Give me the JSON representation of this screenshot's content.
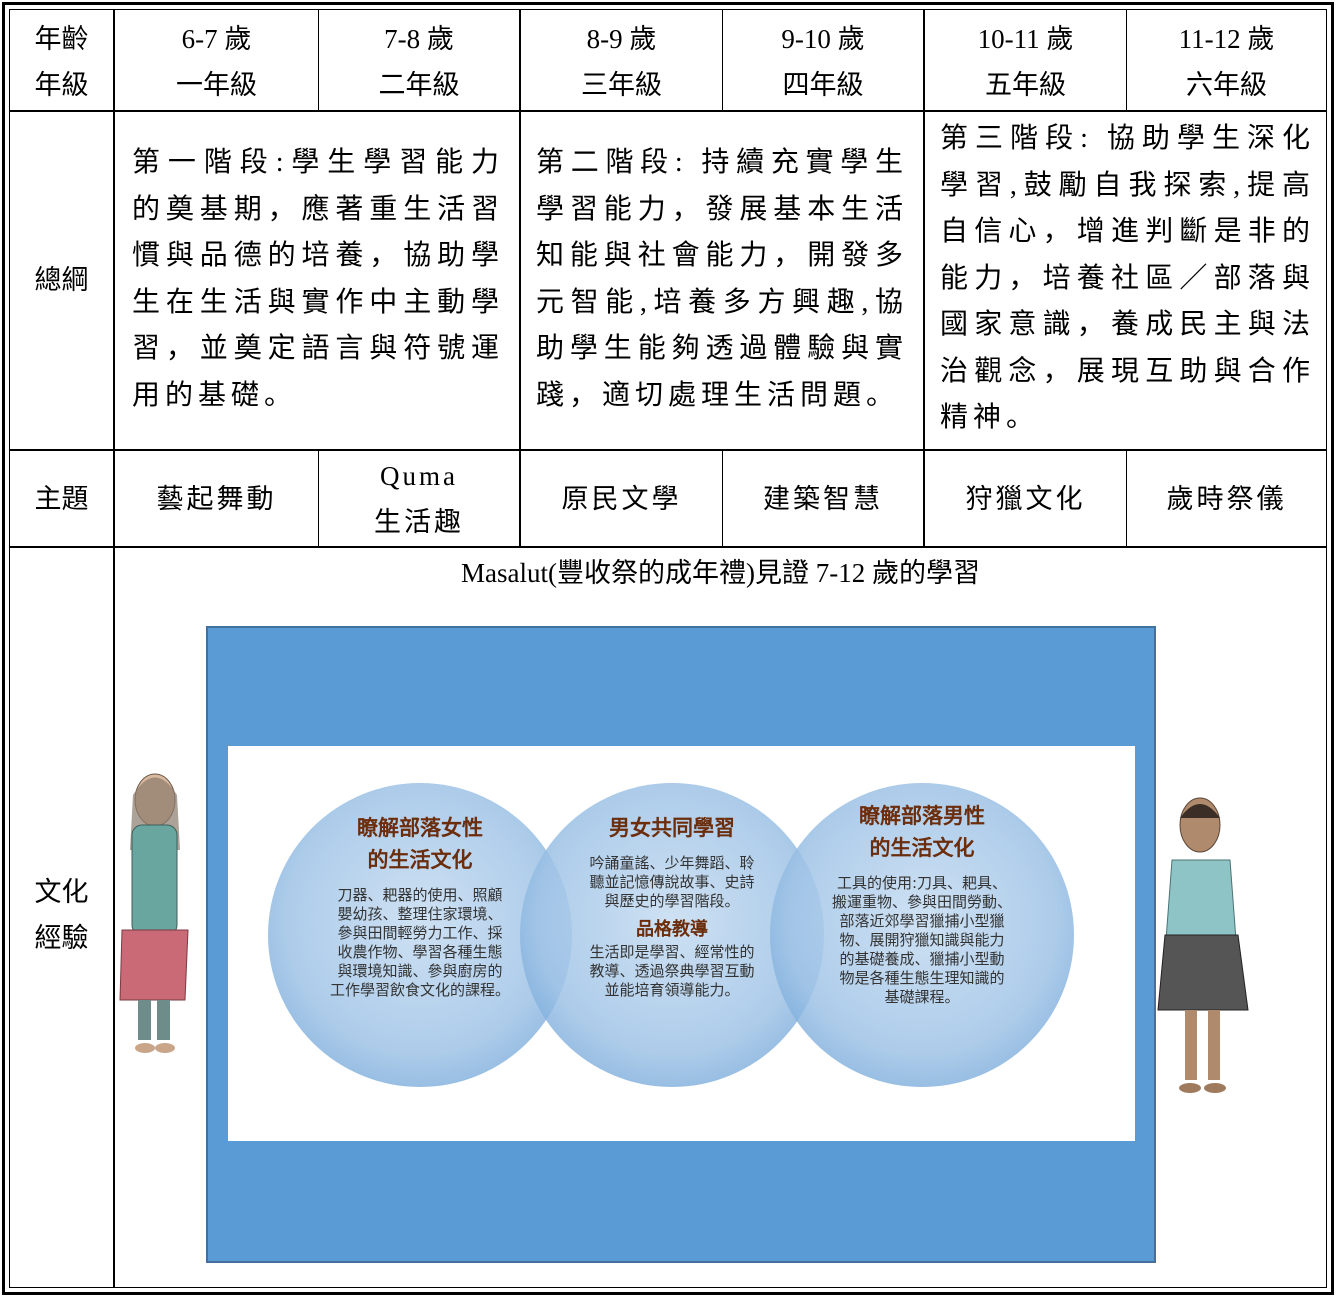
{
  "table": {
    "age_grade": {
      "label": [
        "年齡",
        "年級"
      ],
      "columns": [
        {
          "age": "6-7 歲",
          "grade": "一年級"
        },
        {
          "age": "7-8 歲",
          "grade": "二年級"
        },
        {
          "age": "8-9 歲",
          "grade": "三年級"
        },
        {
          "age": "9-10 歲",
          "grade": "四年級"
        },
        {
          "age": "10-11 歲",
          "grade": "五年級"
        },
        {
          "age": "11-12 歲",
          "grade": "六年級"
        }
      ]
    },
    "outline": {
      "label": "總綱",
      "stages": [
        "第一階段:學生學習能力的奠基期，應著重生活習慣與品德的培養，協助學生在生活與實作中主動學習，並奠定語言與符號運用的基礎。",
        "第二階段: 持續充實學生學習能力，發展基本生活知能與社會能力，開發多元智能,培養多方興趣,協助學生能夠透過體驗與實踐，適切處理生活問題。",
        "第三階段: 協助學生深化學習,鼓勵自我探索,提高自信心，增進判斷是非的能力，培養社區／部落與國家意識，養成民主與法治觀念，展現互助與合作精神。"
      ]
    },
    "themes": {
      "label": "主題",
      "items": [
        [
          "藝起舞動"
        ],
        [
          "Quma",
          "生活趣"
        ],
        [
          "原民文學"
        ],
        [
          "建築智慧"
        ],
        [
          "狩獵文化"
        ],
        [
          "歲時祭儀"
        ]
      ]
    },
    "culture": {
      "label": [
        "文化",
        "經驗"
      ],
      "caption": "Masalut(豐收祭的成年禮)見證 7-12 歲的學習",
      "circles": [
        {
          "title": [
            "瞭解部落女性",
            "的生活文化"
          ],
          "body": [
            "刀器、耙器的使用、照顧",
            "嬰幼孩、整理住家環境、",
            "參與田間輕勞力工作、採",
            "收農作物、學習各種生態",
            "與環境知識、參與廚房的",
            "工作學習飲食文化的課程。"
          ]
        },
        {
          "title": [
            "男女共同學習"
          ],
          "body": [
            "吟誦童謠、少年舞蹈、聆",
            "聽並記憶傳說故事、史詩",
            "與歷史的學習階段。"
          ],
          "subtitle": "品格教導",
          "body2": [
            "生活即是學習、經常性的",
            "教導、透過祭典學習互動",
            "並能培育領導能力。"
          ]
        },
        {
          "title": [
            "瞭解部落男性",
            "的生活文化"
          ],
          "body": [
            "工具的使用:刀具、耙具、",
            "搬運重物、參與田間勞動、",
            "部落近郊學習獵捕小型獵",
            "物、展開狩獵知識與能力",
            "的基礎養成、獵捕小型動",
            "物是各種生態生理知識的",
            "基礎課程。"
          ]
        }
      ]
    }
  }
}
